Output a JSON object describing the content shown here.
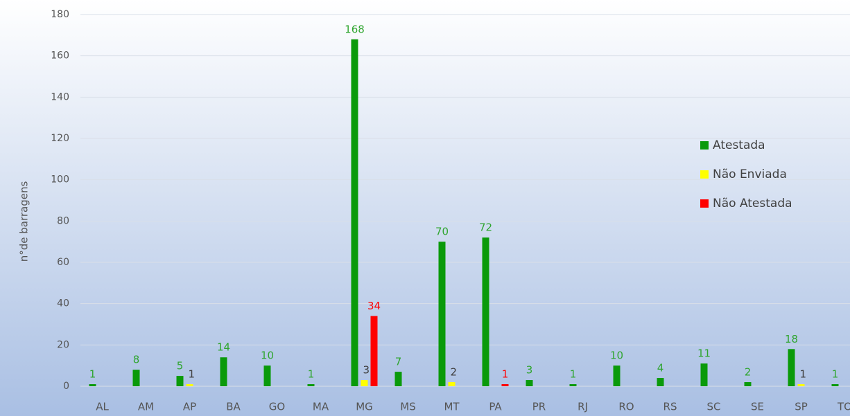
{
  "chart_data": {
    "type": "bar",
    "y_label": "n°de barragens",
    "categories": [
      "AL",
      "AM",
      "AP",
      "BA",
      "GO",
      "MA",
      "MG",
      "MS",
      "MT",
      "PA",
      "PR",
      "RJ",
      "RO",
      "RS",
      "SC",
      "SE",
      "SP",
      "TO"
    ],
    "series": [
      {
        "name": "Atestada",
        "color": "#0a9a0a",
        "label_color": "#2fa52f",
        "values": [
          1,
          8,
          5,
          14,
          10,
          1,
          168,
          7,
          70,
          72,
          3,
          1,
          10,
          4,
          11,
          2,
          18,
          1
        ]
      },
      {
        "name": "Não Enviada",
        "color": "#ffff00",
        "label_color": "#404040",
        "values": [
          null,
          null,
          1,
          null,
          null,
          null,
          3,
          null,
          2,
          null,
          null,
          null,
          null,
          null,
          null,
          null,
          1,
          null
        ]
      },
      {
        "name": "Não Atestada",
        "color": "#ff0000",
        "label_color": "#ff0000",
        "values": [
          null,
          null,
          null,
          null,
          null,
          null,
          34,
          null,
          null,
          1,
          null,
          null,
          null,
          null,
          null,
          null,
          null,
          null
        ]
      }
    ],
    "ylim": [
      0,
      180
    ],
    "yticks": [
      0,
      20,
      40,
      60,
      80,
      100,
      120,
      140,
      160,
      180
    ],
    "grid": true,
    "legend": "right"
  }
}
